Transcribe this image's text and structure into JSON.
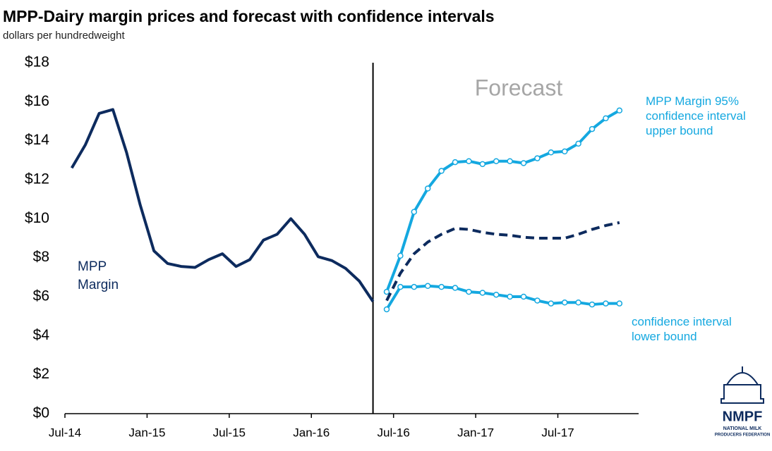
{
  "chart_data": {
    "type": "line",
    "title": "MPP-Dairy margin prices and forecast with confidence intervals",
    "subtitle": "dollars per hundredweight",
    "annotation": "Forecast",
    "forecast_start_x": 22,
    "xlim": [
      -0.5,
      41.4
    ],
    "xticks": [
      {
        "value": -0.5,
        "label": "Jul-14"
      },
      {
        "value": 5.5,
        "label": "Jan-15"
      },
      {
        "value": 11.5,
        "label": "Jul-15"
      },
      {
        "value": 17.5,
        "label": "Jan-16"
      },
      {
        "value": 23.5,
        "label": "Jul-16"
      },
      {
        "value": 29.5,
        "label": "Jan-17"
      },
      {
        "value": 35.5,
        "label": "Jul-17"
      }
    ],
    "ylim": [
      0,
      18
    ],
    "yticks": [
      {
        "value": 0,
        "label": "$0"
      },
      {
        "value": 2,
        "label": "$2"
      },
      {
        "value": 4,
        "label": "$4"
      },
      {
        "value": 6,
        "label": "$6"
      },
      {
        "value": 8,
        "label": "$8"
      },
      {
        "value": 10,
        "label": "$10"
      },
      {
        "value": 12,
        "label": "$12"
      },
      {
        "value": 14,
        "label": "$14"
      },
      {
        "value": 16,
        "label": "$16"
      },
      {
        "value": 18,
        "label": "$18"
      }
    ],
    "grid": false,
    "series": [
      {
        "name": "MPP Margin",
        "color": "#0d2b5e",
        "style": "solid",
        "markers": false,
        "x": [
          0,
          1,
          2,
          3,
          4,
          5,
          6,
          7,
          8,
          9,
          10,
          11,
          12,
          13,
          14,
          15,
          16,
          17,
          18,
          19,
          20,
          21,
          22
        ],
        "values": [
          12.6,
          13.8,
          15.4,
          15.6,
          13.4,
          10.7,
          8.35,
          7.7,
          7.55,
          7.5,
          7.9,
          8.2,
          7.55,
          7.9,
          8.9,
          9.2,
          10.0,
          9.2,
          8.05,
          7.85,
          7.45,
          6.8,
          5.75
        ]
      },
      {
        "name": "MPP Margin 95% confidence interval upper bound",
        "color": "#14a8e0",
        "style": "solid",
        "markers": true,
        "x": [
          23,
          24,
          25,
          26,
          27,
          28,
          29,
          30,
          31,
          32,
          33,
          34,
          35,
          36,
          37,
          38,
          39,
          40
        ],
        "values": [
          6.25,
          8.1,
          10.35,
          11.55,
          12.45,
          12.9,
          12.95,
          12.8,
          12.95,
          12.95,
          12.85,
          13.1,
          13.4,
          13.45,
          13.85,
          14.6,
          15.15,
          15.55
        ]
      },
      {
        "name": "Forecast",
        "color": "#0d2b5e",
        "style": "dashed",
        "markers": false,
        "x": [
          23,
          24,
          25,
          26,
          27,
          28,
          29,
          30,
          31,
          32,
          33,
          34,
          35,
          36,
          37,
          38,
          39,
          40
        ],
        "values": [
          5.8,
          7.2,
          8.2,
          8.8,
          9.2,
          9.5,
          9.45,
          9.3,
          9.2,
          9.15,
          9.05,
          9.0,
          9.0,
          9.0,
          9.2,
          9.45,
          9.65,
          9.8
        ]
      },
      {
        "name": "confidence interval lower bound",
        "color": "#14a8e0",
        "style": "solid",
        "markers": true,
        "x": [
          23,
          24,
          25,
          26,
          27,
          28,
          29,
          30,
          31,
          32,
          33,
          34,
          35,
          36,
          37,
          38,
          39,
          40
        ],
        "values": [
          5.35,
          6.5,
          6.5,
          6.55,
          6.5,
          6.45,
          6.25,
          6.2,
          6.1,
          6.0,
          6.0,
          5.8,
          5.65,
          5.7,
          5.7,
          5.6,
          5.65,
          5.65
        ]
      }
    ]
  },
  "logo": {
    "name": "NMPF",
    "line1": "NATIONAL MILK",
    "line2": "PRODUCERS FEDERATION"
  }
}
